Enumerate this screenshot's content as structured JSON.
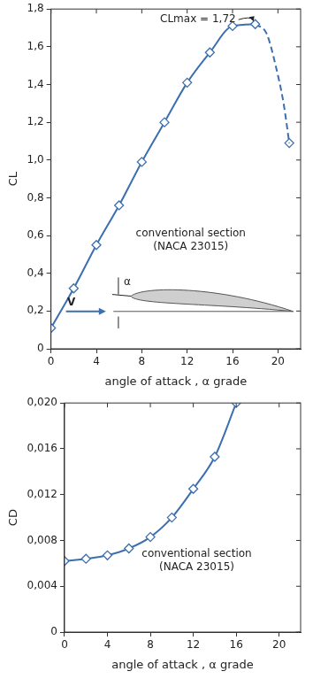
{
  "chart_data": [
    {
      "type": "line",
      "y_label": "CL",
      "x_label": "angle of attack , α grade",
      "annotations": {
        "peak": "CLmax = 1,72",
        "section": [
          "conventional section",
          "(NACA 23015)"
        ],
        "velocity": "V",
        "angle": "α"
      },
      "xlim": [
        0,
        22
      ],
      "xticks": [
        0,
        4,
        8,
        12,
        16,
        20
      ],
      "ylim": [
        0,
        1.8
      ],
      "yticks": [
        0,
        {
          "value": 0.2,
          "label": "0,2"
        },
        {
          "value": 0.4,
          "label": "0,4"
        },
        {
          "value": 0.6,
          "label": "0,6"
        },
        {
          "value": 0.8,
          "label": "0,8"
        },
        {
          "value": 1.0,
          "label": "1,0"
        },
        {
          "value": 1.2,
          "label": "1,2"
        },
        {
          "value": 1.4,
          "label": "1,4"
        },
        {
          "value": 1.6,
          "label": "1,6"
        },
        {
          "value": 1.8,
          "label": "1,8"
        }
      ],
      "grid": false,
      "series": [
        {
          "color": "#3b6fb0",
          "line_style": "solid",
          "marker": "diamond",
          "x": [
            0,
            2,
            4,
            6,
            8,
            10,
            12,
            14,
            16,
            18
          ],
          "values": [
            0.11,
            0.32,
            0.55,
            0.76,
            0.99,
            1.2,
            1.41,
            1.57,
            1.71,
            1.72
          ]
        },
        {
          "color": "#3b6fb0",
          "line_style": "dashed",
          "marker": "none",
          "x": [
            18,
            19,
            19.8,
            20.5,
            21
          ],
          "values": [
            1.72,
            1.67,
            1.5,
            1.3,
            1.09
          ]
        },
        {
          "color": "#3b6fb0",
          "line_style": "none",
          "marker": "diamond",
          "x": [
            21
          ],
          "values": [
            1.09
          ]
        }
      ]
    },
    {
      "type": "line",
      "y_label": "CD",
      "x_label": "angle of attack , α grade",
      "annotations": {
        "section": [
          "conventional section",
          "(NACA 23015)"
        ]
      },
      "xlim": [
        0,
        22
      ],
      "xticks": [
        0,
        4,
        8,
        12,
        16,
        20
      ],
      "ylim": [
        0,
        0.02
      ],
      "yticks": [
        0,
        {
          "value": 0.004,
          "label": "0,004"
        },
        {
          "value": 0.008,
          "label": "0,008"
        },
        {
          "value": 0.012,
          "label": "0,012"
        },
        {
          "value": 0.016,
          "label": "0,016"
        },
        {
          "value": 0.02,
          "label": "0,020"
        }
      ],
      "grid": false,
      "series": [
        {
          "color": "#3b6fb0",
          "line_style": "solid",
          "marker": "diamond",
          "x": [
            0,
            2,
            4,
            6,
            8,
            10,
            12,
            14,
            16
          ],
          "values": [
            0.0062,
            0.0064,
            0.0067,
            0.0073,
            0.0083,
            0.01,
            0.0125,
            0.0153,
            0.02
          ]
        }
      ]
    }
  ]
}
